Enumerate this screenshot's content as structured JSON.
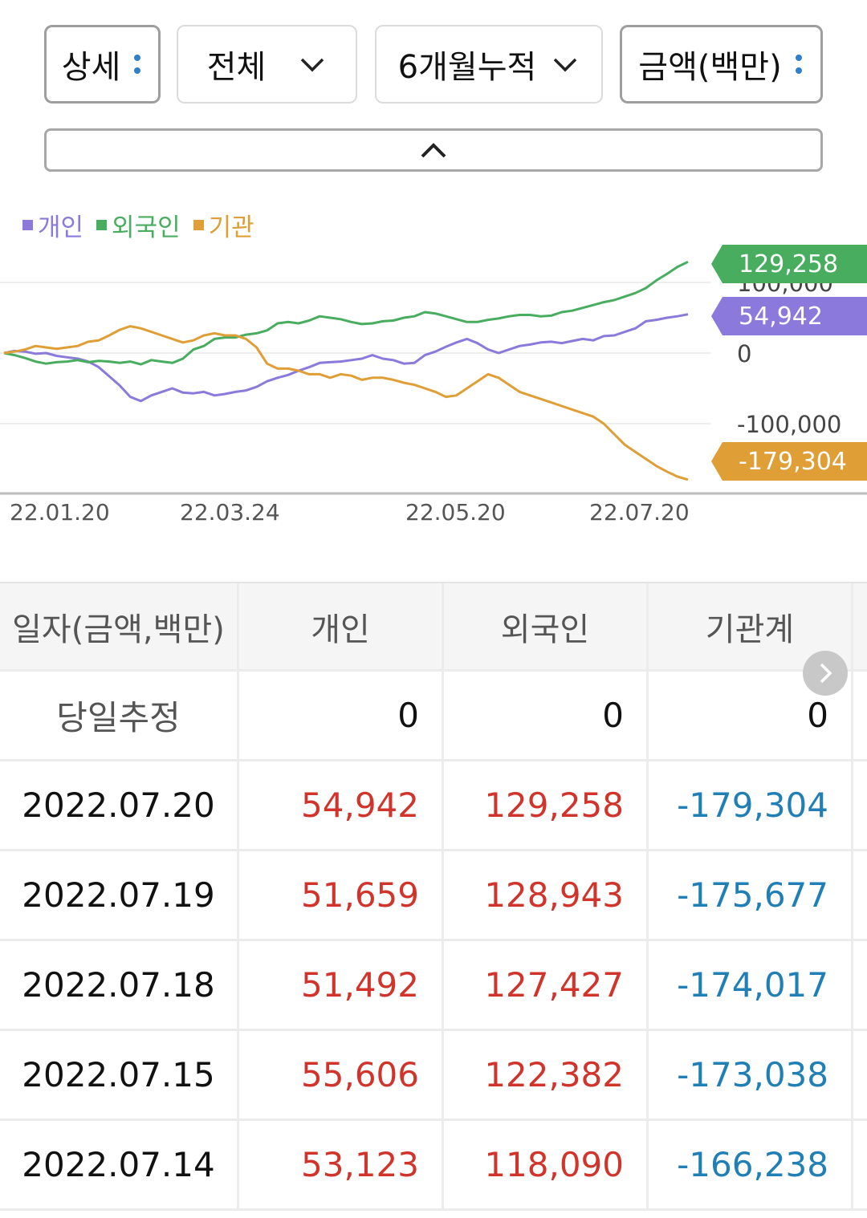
{
  "filters": {
    "detail": "상세",
    "scope": "전체",
    "period": "6개월누적",
    "unit": "금액(백만)"
  },
  "chart_data": {
    "type": "line",
    "x_ticks": [
      "22.01.20",
      "22.03.24",
      "22.05.20",
      "22.07.20"
    ],
    "y_ticks": [
      "100,000",
      "0",
      "-100,000"
    ],
    "ylim": [
      -185000,
      135000
    ],
    "legend_position": "top-left",
    "grid": true,
    "series": [
      {
        "name": "개인",
        "color": "#8b79dc",
        "last_label": "54,942",
        "values": [
          0,
          3000,
          2000,
          -1000,
          0,
          -4000,
          -6000,
          -8000,
          -12000,
          -20000,
          -33000,
          -46000,
          -62000,
          -68000,
          -60000,
          -55000,
          -50000,
          -56000,
          -57000,
          -55000,
          -60000,
          -58000,
          -55000,
          -53000,
          -48000,
          -40000,
          -35000,
          -31000,
          -25000,
          -20000,
          -14000,
          -13000,
          -12000,
          -10000,
          -8000,
          -3000,
          -8000,
          -10000,
          -15000,
          -14000,
          -3000,
          2000,
          9000,
          15000,
          20000,
          14000,
          5000,
          0,
          5000,
          10000,
          12000,
          15000,
          16000,
          14000,
          17000,
          20000,
          18000,
          24000,
          25000,
          30000,
          35000,
          45000,
          47000,
          50000,
          52000,
          54942
        ]
      },
      {
        "name": "외국인",
        "color": "#49ad60",
        "last_label": "129,258",
        "values": [
          0,
          -3000,
          -7000,
          -12000,
          -15000,
          -13000,
          -12000,
          -10000,
          -13000,
          -11000,
          -12000,
          -14000,
          -12000,
          -16000,
          -10000,
          -12000,
          -14000,
          -8000,
          5000,
          10000,
          20000,
          22000,
          22000,
          26000,
          28000,
          32000,
          42000,
          44000,
          42000,
          46000,
          52000,
          50000,
          48000,
          44000,
          41000,
          42000,
          45000,
          46000,
          50000,
          52000,
          58000,
          56000,
          52000,
          48000,
          44000,
          44000,
          47000,
          49000,
          52000,
          54000,
          54000,
          52000,
          53000,
          58000,
          60000,
          64000,
          68000,
          72000,
          75000,
          80000,
          85000,
          92000,
          103000,
          112000,
          122000,
          129258
        ]
      },
      {
        "name": "기관",
        "color": "#df9f36",
        "last_label": "-179,304",
        "values": [
          0,
          2000,
          5000,
          10000,
          8000,
          6000,
          8000,
          10000,
          16000,
          18000,
          25000,
          33000,
          38000,
          35000,
          30000,
          25000,
          20000,
          15000,
          18000,
          25000,
          28000,
          25000,
          25000,
          20000,
          8000,
          -15000,
          -22000,
          -22000,
          -25000,
          -30000,
          -30000,
          -35000,
          -30000,
          -32000,
          -38000,
          -35000,
          -35000,
          -38000,
          -42000,
          -45000,
          -50000,
          -55000,
          -62000,
          -60000,
          -50000,
          -40000,
          -30000,
          -35000,
          -45000,
          -55000,
          -60000,
          -65000,
          -70000,
          -75000,
          -80000,
          -85000,
          -90000,
          -100000,
          -115000,
          -130000,
          -140000,
          -150000,
          -160000,
          -168000,
          -175000,
          -179304
        ]
      }
    ]
  },
  "table": {
    "headers": [
      "일자(금액,백만)",
      "개인",
      "외국인",
      "기관계"
    ],
    "rows": [
      {
        "date": "당일추정",
        "individual": "0",
        "foreign": "0",
        "institution": "0"
      },
      {
        "date": "2022.07.20",
        "individual": "54,942",
        "foreign": "129,258",
        "institution": "-179,304"
      },
      {
        "date": "2022.07.19",
        "individual": "51,659",
        "foreign": "128,943",
        "institution": "-175,677"
      },
      {
        "date": "2022.07.18",
        "individual": "51,492",
        "foreign": "127,427",
        "institution": "-174,017"
      },
      {
        "date": "2022.07.15",
        "individual": "55,606",
        "foreign": "122,382",
        "institution": "-173,038"
      },
      {
        "date": "2022.07.14",
        "individual": "53,123",
        "foreign": "118,090",
        "institution": "-166,238"
      }
    ]
  }
}
